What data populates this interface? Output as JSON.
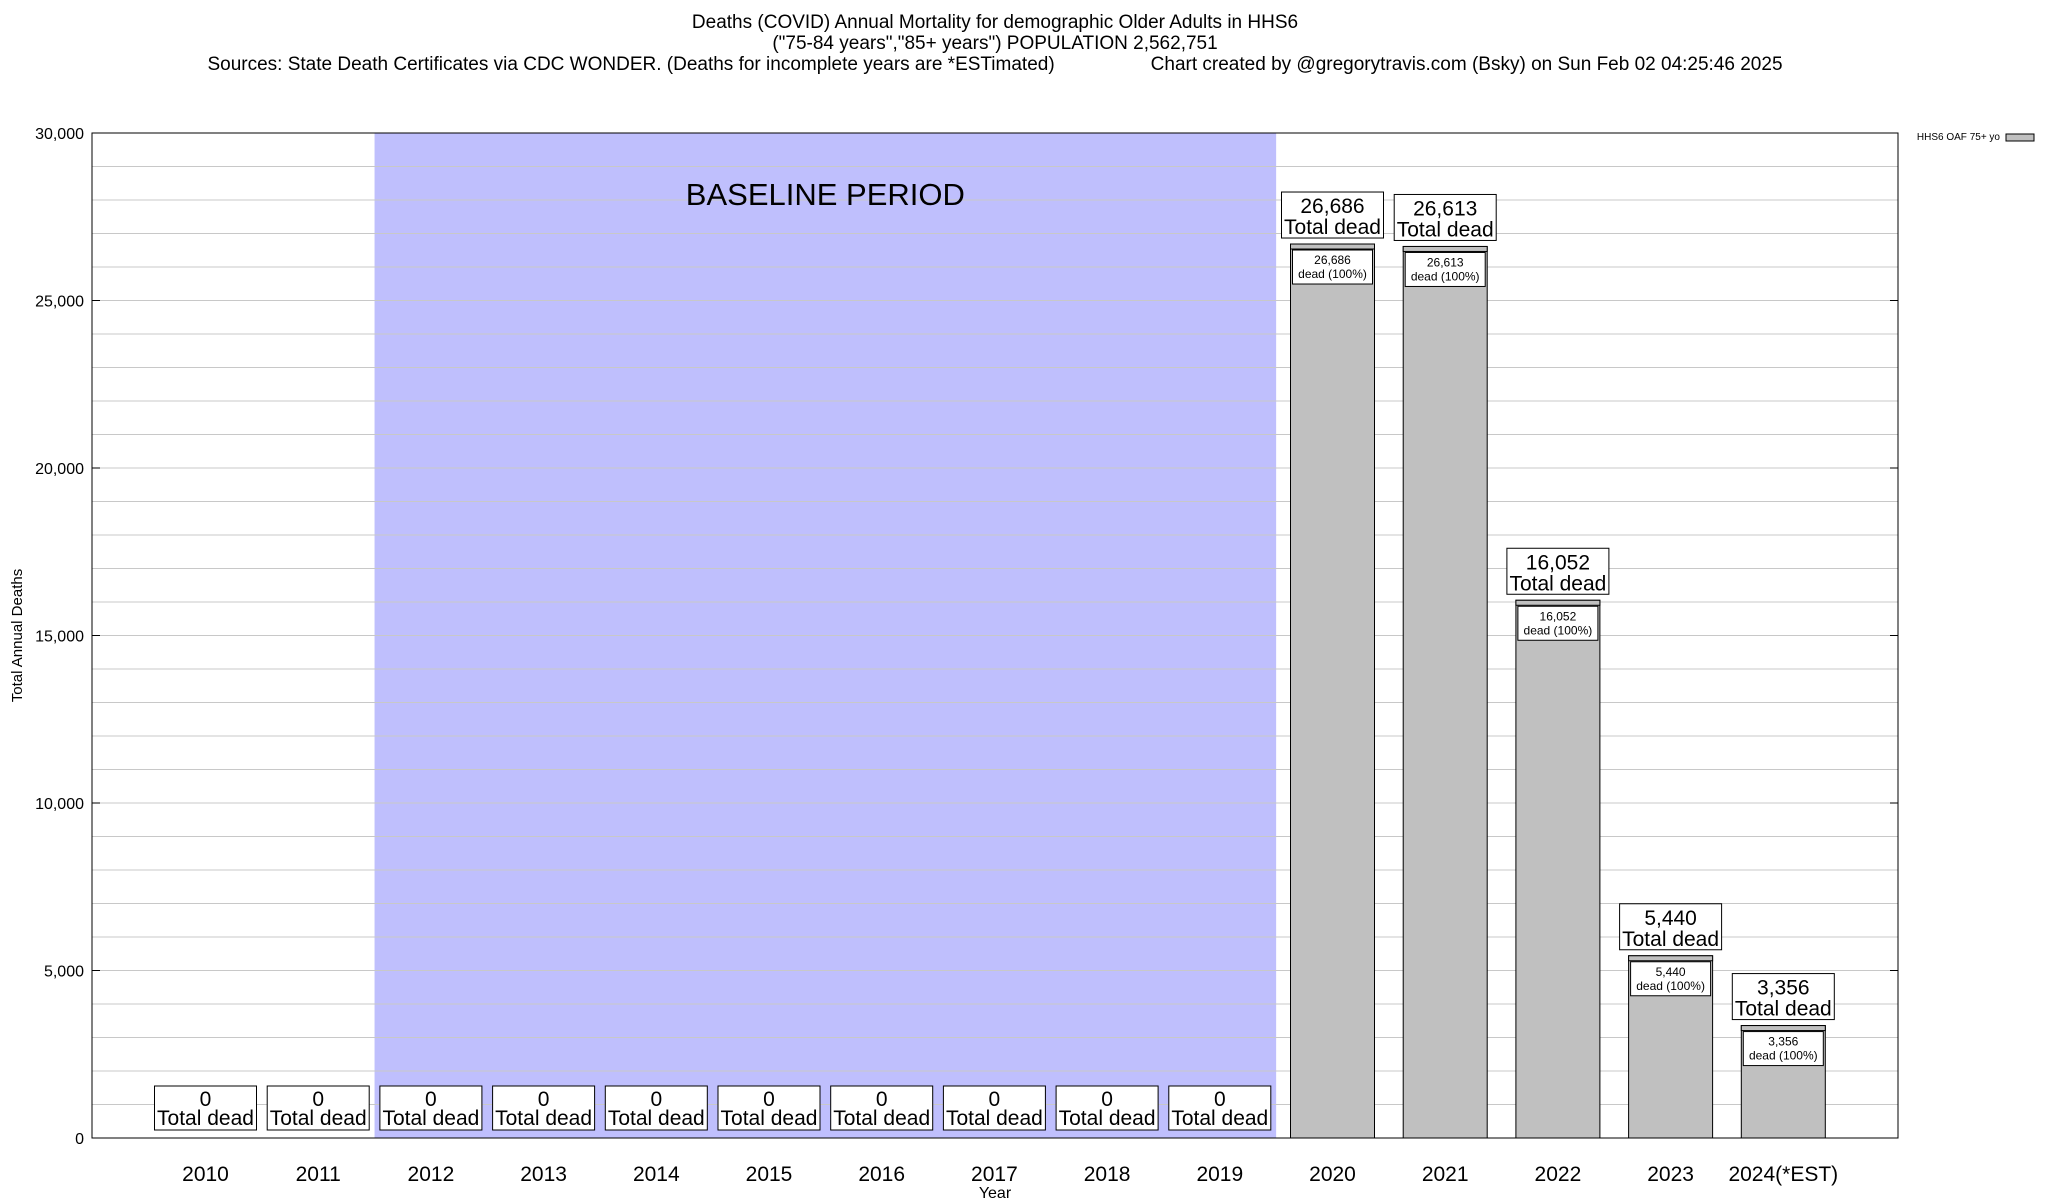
{
  "chart_data": {
    "type": "bar",
    "title": "Deaths (COVID) Annual Mortality for demographic Older Adults in HHS6",
    "subtitle": "(\"75-84 years\",\"85+ years\") POPULATION 2,562,751",
    "source_line": "Sources: State Death Certificates via CDC WONDER. (Deaths for incomplete years are *ESTimated)",
    "credit_line": "Chart created by @gregorytravis.com (Bsky) on Sun Feb 02 04:25:46 2025",
    "xlabel": "Year",
    "ylabel": "Total Annual Deaths",
    "ylim": [
      0,
      30000
    ],
    "y_ticks": [
      0,
      5000,
      10000,
      15000,
      20000,
      25000,
      30000
    ],
    "y_tick_labels": [
      "0",
      "5,000",
      "10,000",
      "15,000",
      "20,000",
      "25,000",
      "30,000"
    ],
    "categories": [
      "2010",
      "2011",
      "2012",
      "2013",
      "2014",
      "2015",
      "2016",
      "2017",
      "2018",
      "2019",
      "2020",
      "2021",
      "2022",
      "2023",
      "2024(*EST)"
    ],
    "series": [
      {
        "name": "HHS6 OAF 75+ yo",
        "values": [
          0,
          0,
          0,
          0,
          0,
          0,
          0,
          0,
          0,
          0,
          26686,
          26613,
          16052,
          5440,
          3356
        ]
      }
    ],
    "total_labels": [
      "0",
      "0",
      "0",
      "0",
      "0",
      "0",
      "0",
      "0",
      "0",
      "0",
      "26,686",
      "26,613",
      "16,052",
      "5,440",
      "3,356"
    ],
    "total_label_suffix": "Total dead",
    "inner_label_suffix": "dead (100%)",
    "baseline_period": {
      "label": "BASELINE PERIOD",
      "from_category": "2012",
      "to_category": "2019"
    },
    "legend_placement": "top-right",
    "grid": true,
    "colors": {
      "bar": "#c0c0c0",
      "baseline_shade": "#bfbffd",
      "grid": "#c8c8c8"
    }
  }
}
